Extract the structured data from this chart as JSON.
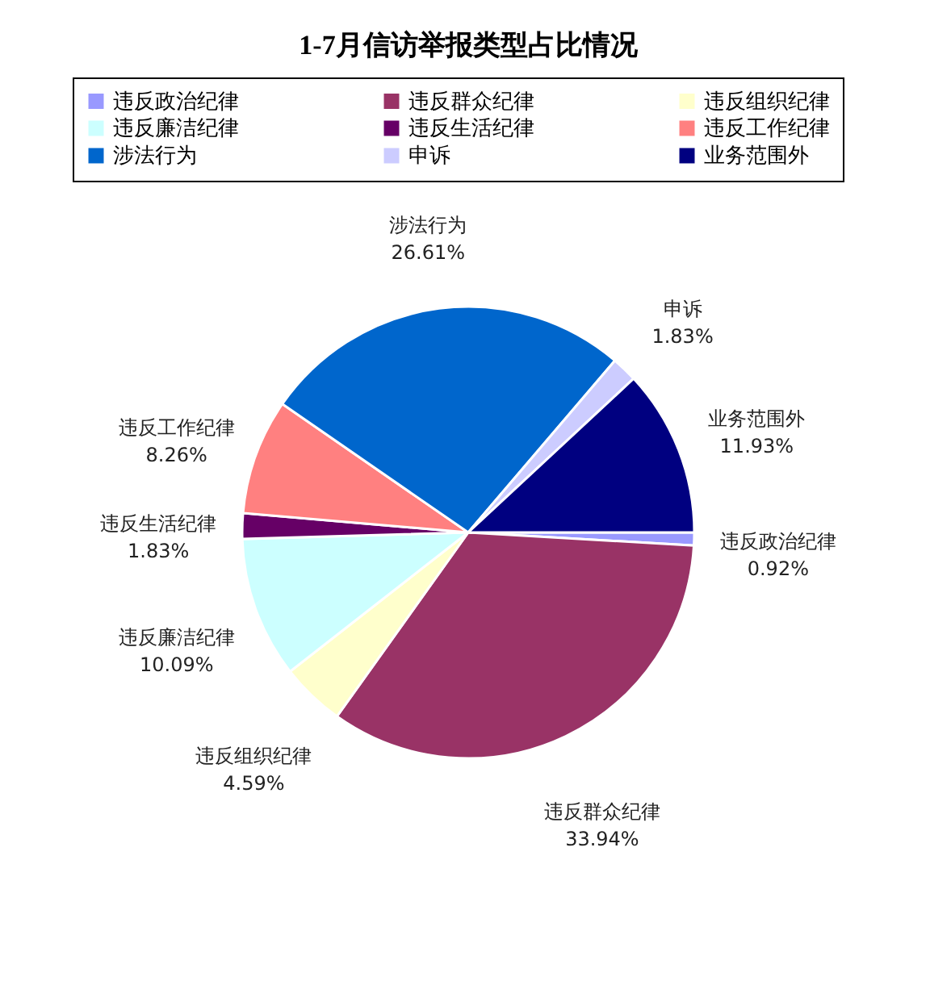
{
  "chart_data": {
    "type": "pie",
    "title": "1-7月信访举报类型占比情况",
    "categories": [
      "违反政治纪律",
      "违反群众纪律",
      "违反组织纪律",
      "违反廉洁纪律",
      "违反生活纪律",
      "违反工作纪律",
      "涉法行为",
      "申诉",
      "业务范围外"
    ],
    "values": [
      0.92,
      33.94,
      4.59,
      10.09,
      1.83,
      8.26,
      26.61,
      1.83,
      11.93
    ],
    "colors": [
      "#9999ff",
      "#993366",
      "#ffffcc",
      "#ccffff",
      "#660066",
      "#ff8080",
      "#0066cc",
      "#ccccff",
      "#000080"
    ],
    "value_labels": [
      "0.92%",
      "33.94%",
      "4.59%",
      "10.09%",
      "1.83%",
      "8.26%",
      "26.61%",
      "1.83%",
      "11.93%"
    ],
    "legend": "top"
  }
}
